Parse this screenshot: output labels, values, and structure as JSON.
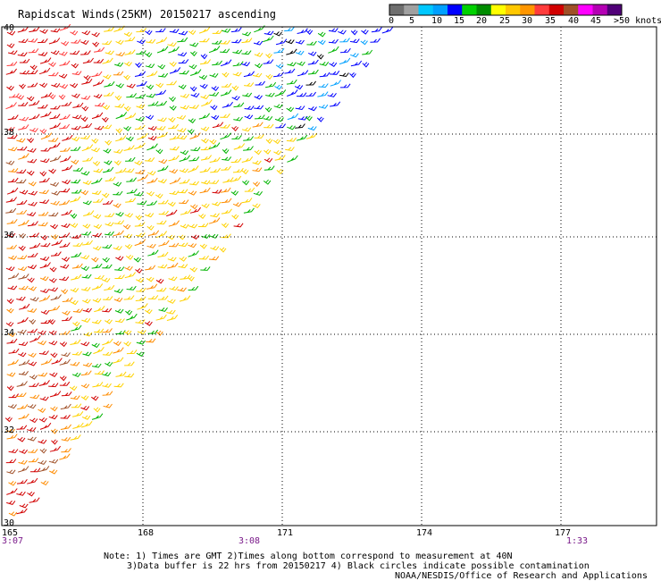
{
  "title": "Rapidscat Winds(25KM) 20150217 ascending",
  "colorbar": {
    "labels": [
      "0",
      "5",
      "10",
      "15",
      "20",
      "25",
      "30",
      "35",
      "40",
      "45",
      ">50 knots"
    ],
    "colors": [
      "#6e6e6e",
      "#a0a0a0",
      "#00c8ff",
      "#00a0ff",
      "#0000ff",
      "#00d200",
      "#008c00",
      "#ffff00",
      "#ffc800",
      "#ff9600",
      "#ff3c3c",
      "#d20000",
      "#a05028",
      "#ff00ff",
      "#b400b4",
      "#500078"
    ]
  },
  "map": {
    "lat_labels": [
      "40",
      "38",
      "36",
      "34",
      "32",
      "30"
    ],
    "lon_labels": [
      "165",
      "168",
      "171",
      "174",
      "177"
    ],
    "time_labels": [
      "3:07",
      "3:08",
      "1:33"
    ]
  },
  "notes": {
    "line1": "Note: 1) Times are GMT 2)Times along bottom correspond to measurement at 40N",
    "line2": "3)Data buffer is 22 hrs from 20150217 4) Black circles indicate possible contamination",
    "line3": "NOAA/NESDIS/Office of Research and Applications"
  }
}
